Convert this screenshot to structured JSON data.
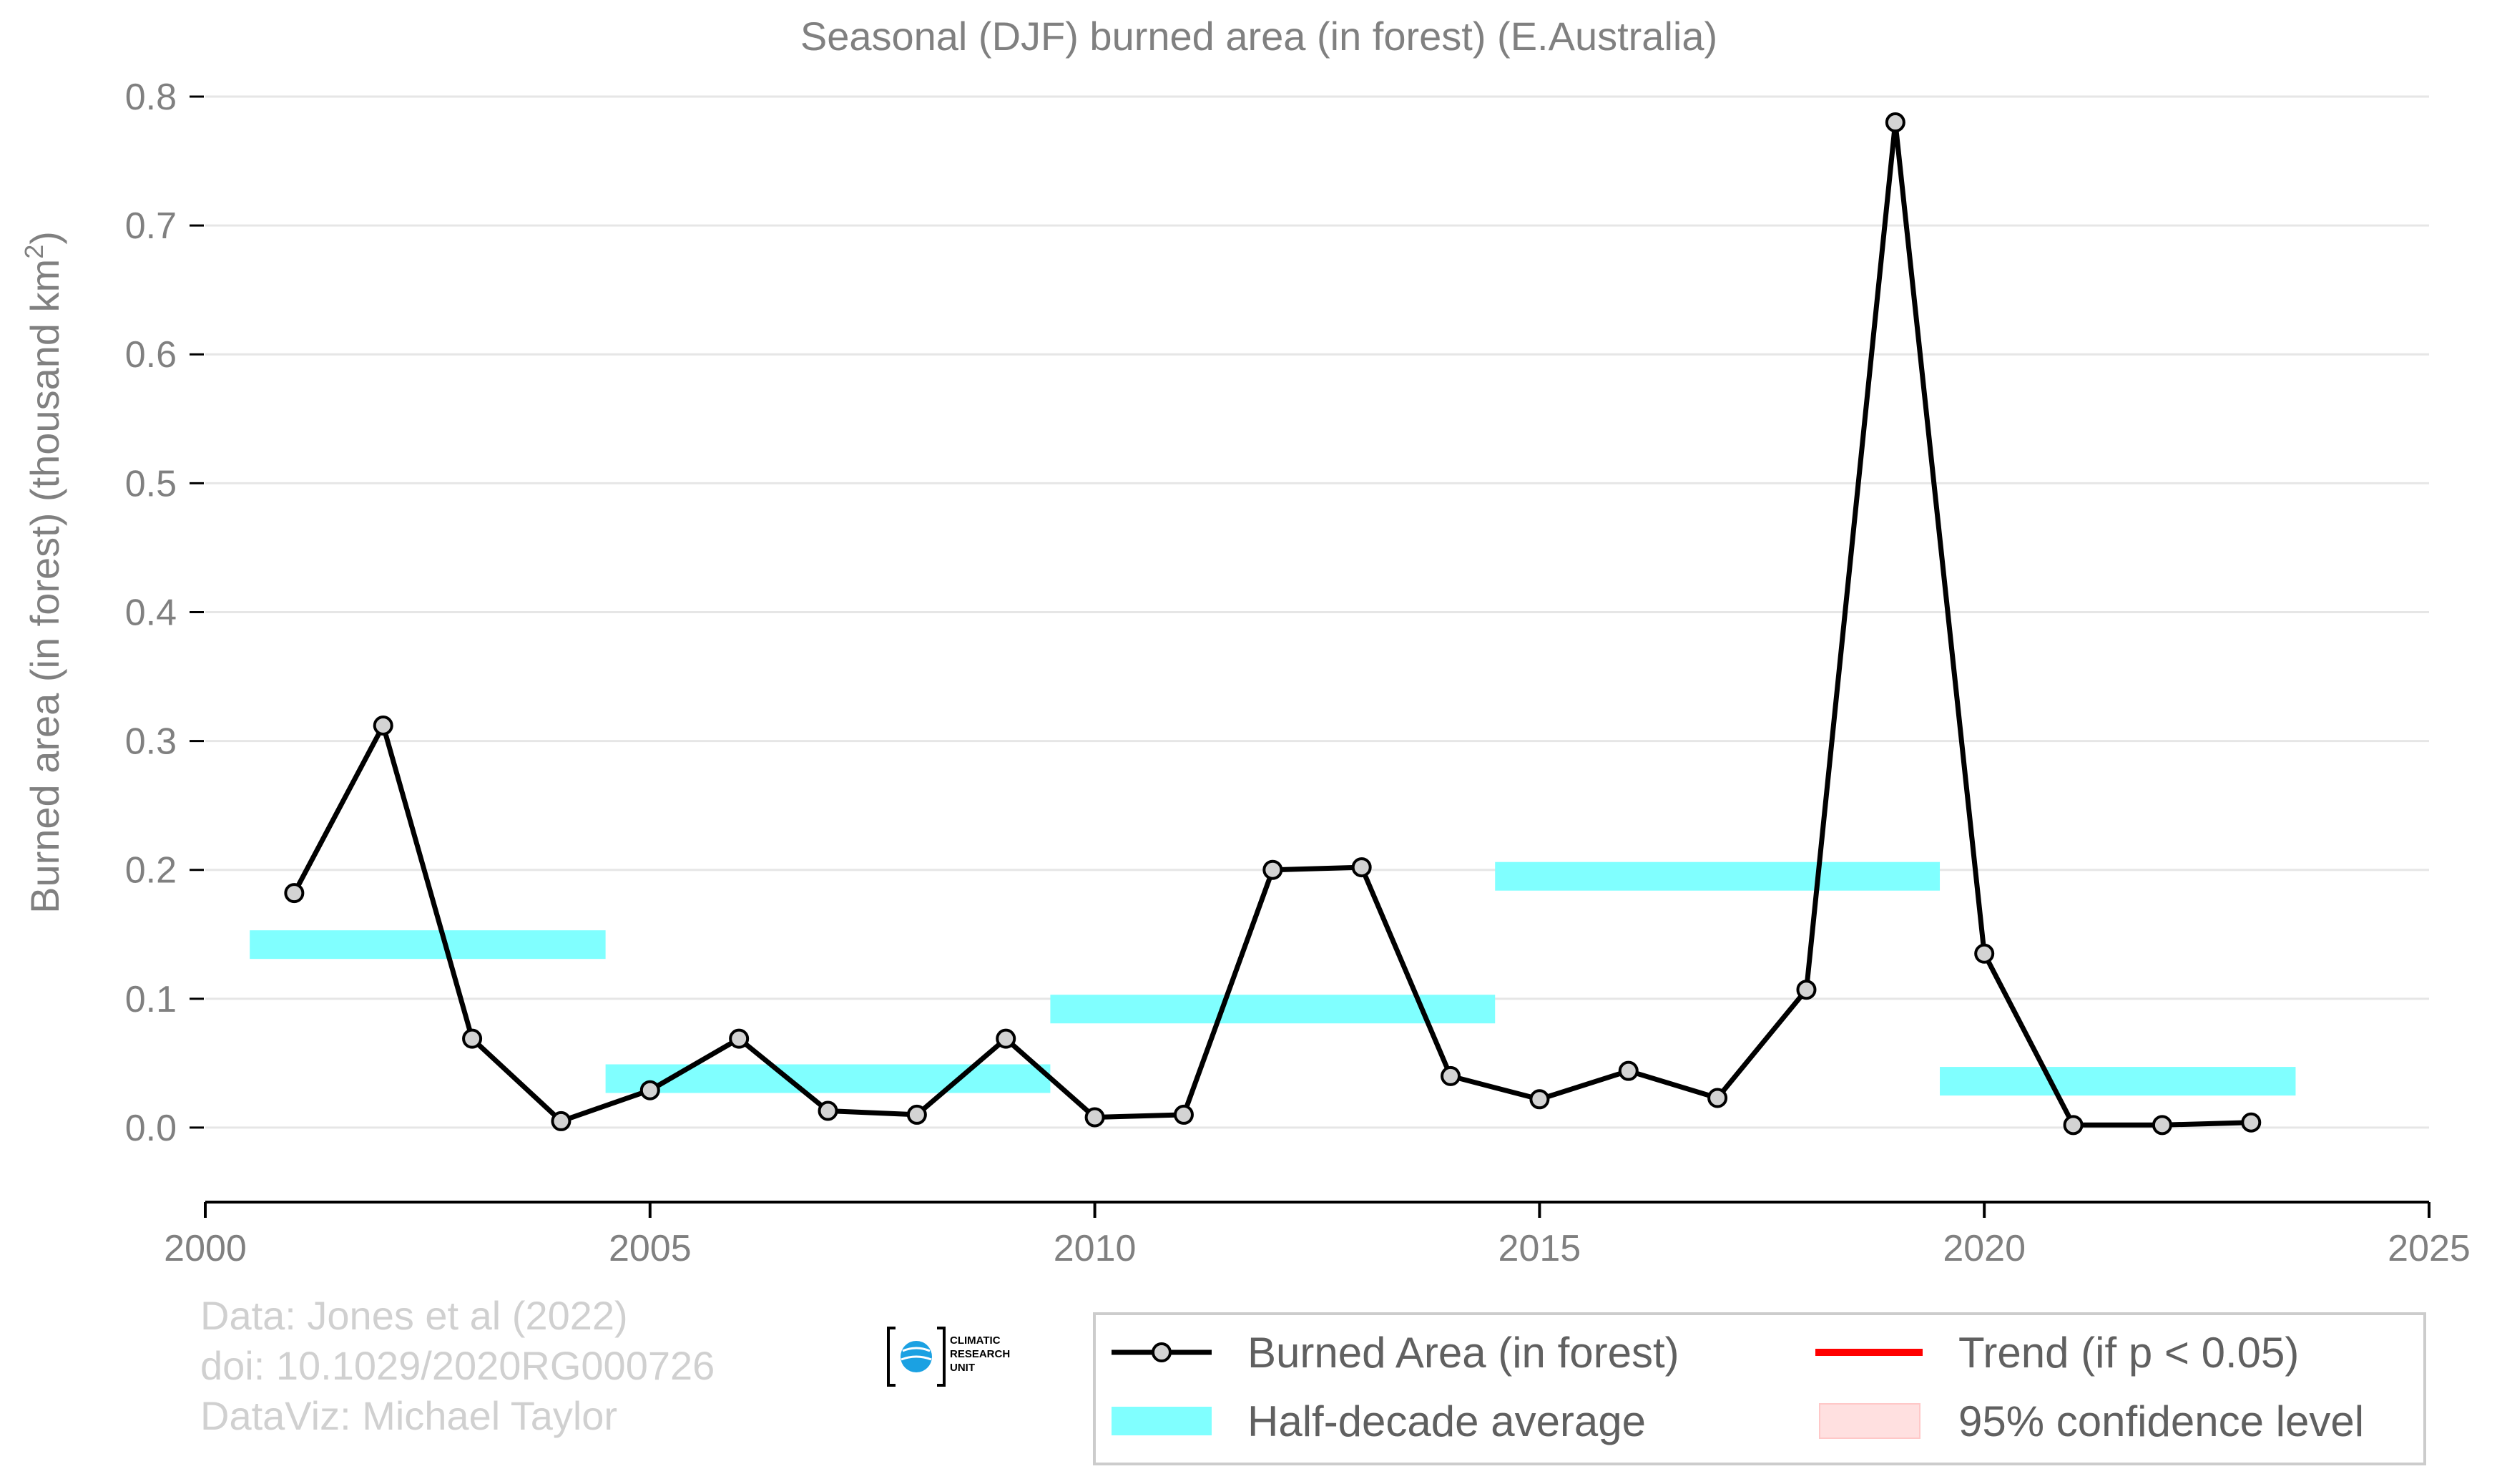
{
  "chart_data": {
    "type": "line",
    "title": "Seasonal (DJF) burned area (in forest) (E.Australia)",
    "ylabel": "Burned area (in forest) (thousand km",
    "ylabel_sup": "2",
    "ylabel_close": ")",
    "xlim": [
      2000,
      2025
    ],
    "ylim": [
      -0.06,
      0.8
    ],
    "x_ticks": [
      2000,
      2005,
      2010,
      2015,
      2020,
      2025
    ],
    "y_ticks": [
      0.0,
      0.1,
      0.2,
      0.3,
      0.4,
      0.5,
      0.6,
      0.7,
      0.8
    ],
    "y_tick_labels": [
      "0.0",
      "0.1",
      "0.2",
      "0.3",
      "0.4",
      "0.5",
      "0.6",
      "0.7",
      "0.8"
    ],
    "grid": "horizontal",
    "series": [
      {
        "name": "Burned Area (in forest)",
        "color": "#000000",
        "x": [
          2001,
          2002,
          2003,
          2004,
          2005,
          2006,
          2007,
          2008,
          2009,
          2010,
          2011,
          2012,
          2013,
          2014,
          2015,
          2016,
          2017,
          2018,
          2019,
          2020,
          2021,
          2022,
          2023
        ],
        "y": [
          0.182,
          0.312,
          0.069,
          0.005,
          0.029,
          0.069,
          0.013,
          0.01,
          0.069,
          0.008,
          0.01,
          0.2,
          0.202,
          0.04,
          0.022,
          0.044,
          0.023,
          0.107,
          0.78,
          0.135,
          0.002,
          0.002,
          0.004
        ]
      }
    ],
    "half_decade_average": {
      "name": "Half-decade average",
      "color": "#80ffff",
      "segments": [
        {
          "x_start": 2000.5,
          "x_end": 2004.5,
          "value": 0.142
        },
        {
          "x_start": 2004.5,
          "x_end": 2009.5,
          "value": 0.038
        },
        {
          "x_start": 2009.5,
          "x_end": 2014.5,
          "value": 0.092
        },
        {
          "x_start": 2014.5,
          "x_end": 2019.5,
          "value": 0.195
        },
        {
          "x_start": 2019.5,
          "x_end": 2023.5,
          "value": 0.036
        }
      ]
    },
    "legend": {
      "placement": "bottom-right",
      "entries": [
        {
          "label": "Burned Area (in forest)",
          "kind": "line-marker",
          "color": "#000000"
        },
        {
          "label": "Trend (if p < 0.05)",
          "kind": "line",
          "color": "#ff0000"
        },
        {
          "label": "Half-decade average",
          "kind": "band",
          "color": "#80ffff"
        },
        {
          "label": "95% confidence level",
          "kind": "patch",
          "color": "#ffe0e0"
        }
      ]
    },
    "credits": [
      "Data: Jones et al (2022)",
      "doi: 10.1029/2020RG000726",
      "DataViz: Michael Taylor"
    ],
    "logo_lines": [
      "CLIMATIC",
      "RESEARCH",
      "UNIT"
    ]
  }
}
